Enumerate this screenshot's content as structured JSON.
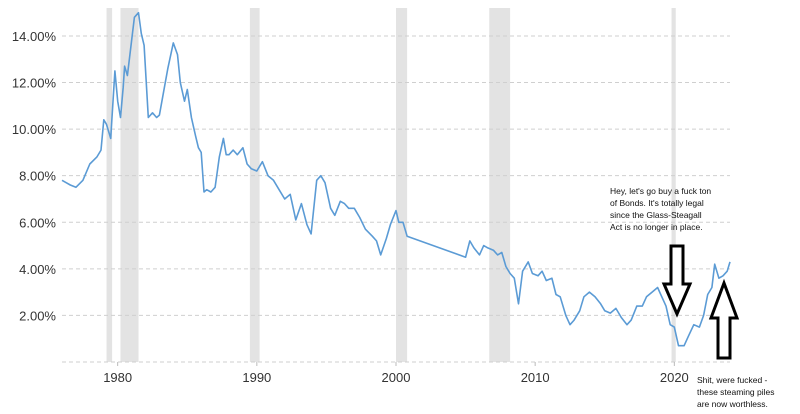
{
  "chart_data": {
    "type": "line",
    "title": "",
    "xlabel": "",
    "ylabel": "",
    "xlim": [
      1976,
      2024
    ],
    "ylim": [
      0,
      15.2
    ],
    "y_ticks": [
      2,
      4,
      6,
      8,
      10,
      12,
      14
    ],
    "y_tick_labels": [
      "2.00%",
      "4.00%",
      "6.00%",
      "8.00%",
      "10.00%",
      "12.00%",
      "14.00%"
    ],
    "x_ticks": [
      1980,
      1990,
      2000,
      2010,
      2020
    ],
    "x_tick_labels": [
      "1980",
      "1990",
      "2000",
      "2010",
      "2020"
    ],
    "grid": "horizontal dashed",
    "line_color": "#5b9bd5",
    "recession_color": "#e3e3e3",
    "recessions": [
      [
        1979.2,
        1979.6
      ],
      [
        1980.2,
        1981.5
      ],
      [
        1989.5,
        1990.2
      ],
      [
        2000.0,
        2000.8
      ],
      [
        2006.7,
        2008.2
      ],
      [
        2019.8,
        2020.1
      ]
    ],
    "series": [
      {
        "x": [
          1976.0,
          1976.3,
          1976.6,
          1977.0,
          1977.5,
          1978.0,
          1978.5,
          1978.8,
          1979.0,
          1979.2,
          1979.5,
          1979.8,
          1980.0,
          1980.2,
          1980.4,
          1980.5,
          1980.7,
          1981.0,
          1981.2,
          1981.5,
          1981.7,
          1981.9,
          1982.2,
          1982.5,
          1982.8,
          1983.0,
          1983.3,
          1983.6,
          1984.0,
          1984.3,
          1984.5,
          1984.8,
          1985.0,
          1985.3,
          1985.6,
          1985.8,
          1986.0,
          1986.2,
          1986.4,
          1986.7,
          1987.0,
          1987.3,
          1987.6,
          1987.8,
          1988.0,
          1988.3,
          1988.6,
          1989.0,
          1989.3,
          1989.6,
          1990.0,
          1990.4,
          1990.8,
          1991.2,
          1991.6,
          1992.0,
          1992.4,
          1992.8,
          1993.2,
          1993.6,
          1993.9,
          1994.3,
          1994.6,
          1994.9,
          1995.3,
          1995.6,
          1996.0,
          1996.3,
          1996.6,
          1997.0,
          1997.4,
          1997.8,
          1998.3,
          1998.6,
          1998.9,
          1999.3,
          1999.6,
          2000.0,
          2000.2,
          2000.5,
          2000.8,
          2005.0,
          2005.3,
          2005.6,
          2006.0,
          2006.3,
          2006.6,
          2007.0,
          2007.3,
          2007.6,
          2007.9,
          2008.2,
          2008.5,
          2008.8,
          2009.1,
          2009.5,
          2009.8,
          2010.2,
          2010.5,
          2010.8,
          2011.2,
          2011.5,
          2011.8,
          2012.2,
          2012.5,
          2012.8,
          2013.2,
          2013.5,
          2013.9,
          2014.3,
          2014.7,
          2015.0,
          2015.4,
          2015.8,
          2016.2,
          2016.6,
          2016.9,
          2017.3,
          2017.7,
          2018.0,
          2018.4,
          2018.8,
          2019.1,
          2019.4,
          2019.7,
          2020.0,
          2020.3,
          2020.7,
          2021.0,
          2021.4,
          2021.8,
          2022.1,
          2022.4,
          2022.7,
          2022.9,
          2023.2,
          2023.5,
          2023.8,
          2024.0
        ],
        "values": [
          7.8,
          7.7,
          7.6,
          7.5,
          7.8,
          8.5,
          8.8,
          9.1,
          10.4,
          10.2,
          9.6,
          12.5,
          11.2,
          10.5,
          11.8,
          12.7,
          12.3,
          13.8,
          14.8,
          15.0,
          14.1,
          13.6,
          10.5,
          10.7,
          10.5,
          10.6,
          11.6,
          12.6,
          13.7,
          13.2,
          12.0,
          11.2,
          11.7,
          10.5,
          9.7,
          9.2,
          9.0,
          7.3,
          7.4,
          7.3,
          7.5,
          8.8,
          9.6,
          8.9,
          8.9,
          9.1,
          8.9,
          9.2,
          8.5,
          8.3,
          8.2,
          8.6,
          8.0,
          7.8,
          7.4,
          7.0,
          7.2,
          6.1,
          6.8,
          5.9,
          5.5,
          7.8,
          8.0,
          7.7,
          6.6,
          6.3,
          6.9,
          6.8,
          6.6,
          6.6,
          6.2,
          5.7,
          5.4,
          5.2,
          4.6,
          5.3,
          5.9,
          6.5,
          6.0,
          6.0,
          5.4,
          4.5,
          5.2,
          4.9,
          4.6,
          5.0,
          4.9,
          4.8,
          4.6,
          4.7,
          4.1,
          3.8,
          3.6,
          2.5,
          3.9,
          4.3,
          3.8,
          3.7,
          3.9,
          3.5,
          3.6,
          2.9,
          2.8,
          2.0,
          1.6,
          1.8,
          2.2,
          2.8,
          3.0,
          2.8,
          2.5,
          2.2,
          2.1,
          2.3,
          1.9,
          1.6,
          1.8,
          2.4,
          2.4,
          2.8,
          3.0,
          3.2,
          2.8,
          2.4,
          1.6,
          1.5,
          0.7,
          0.7,
          1.1,
          1.6,
          1.5,
          2.0,
          2.9,
          3.2,
          4.2,
          3.6,
          3.7,
          3.9,
          4.3
        ]
      }
    ],
    "annotations": [
      "Hey, let's go buy a fuck ton",
      "of Bonds. It's totally legal",
      "since the Glass-Steagall",
      "Act is no longer in place."
    ],
    "annotations_2": [
      "Shit, were fucked -",
      "these steaming piles",
      "are now worthless."
    ],
    "arrows": [
      "down-arrow",
      "up-arrow"
    ]
  }
}
